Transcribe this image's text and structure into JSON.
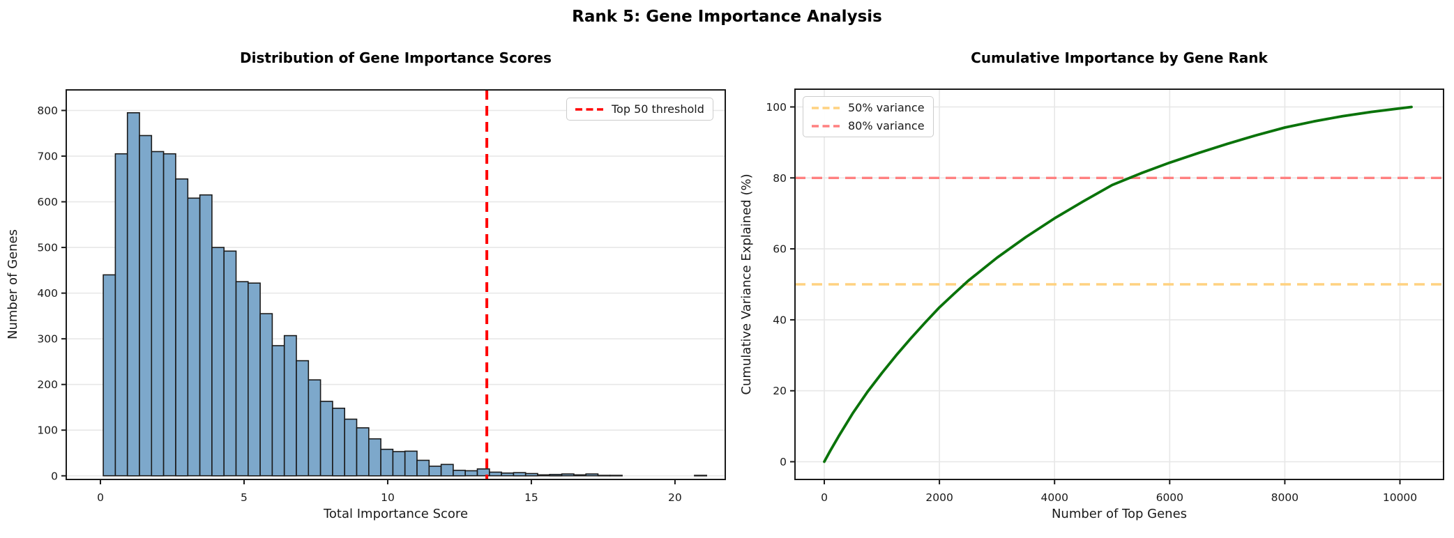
{
  "figure": {
    "suptitle": "Rank 5: Gene Importance Analysis",
    "background_color": "#ffffff"
  },
  "chart_data": [
    {
      "type": "bar",
      "subtype": "histogram",
      "title": "Distribution of Gene Importance Scores",
      "xlabel": "Total Importance Score",
      "ylabel": "Number of Genes",
      "bin_start": 0.1,
      "bin_width": 0.42,
      "counts": [
        440,
        705,
        795,
        745,
        710,
        705,
        650,
        608,
        615,
        500,
        492,
        425,
        422,
        355,
        285,
        307,
        252,
        210,
        163,
        148,
        124,
        105,
        81,
        58,
        53,
        54,
        34,
        21,
        25,
        12,
        11,
        15,
        8,
        6,
        7,
        5,
        2,
        3,
        4,
        2,
        4,
        1,
        1,
        0,
        0,
        0,
        0,
        0,
        0,
        1
      ],
      "xticks": [
        0,
        5,
        10,
        15,
        20
      ],
      "yticks": [
        0,
        100,
        200,
        300,
        400,
        500,
        600,
        700,
        800
      ],
      "xlim": [
        -1.19,
        21.75
      ],
      "ylim": [
        -8,
        845
      ],
      "grid": "y",
      "bar_color": "#7DA8CB",
      "bar_edge_color": "#1A1A1A",
      "threshold_line": {
        "x": 13.45,
        "style": "dashed",
        "color": "#FF0000",
        "label": "Top 50 threshold"
      },
      "legend": {
        "position": "upper right",
        "items": [
          {
            "label": "Top 50 threshold",
            "color": "#FF0000"
          }
        ]
      }
    },
    {
      "type": "line",
      "title": "Cumulative Importance by Gene Rank",
      "xlabel": "Number of Top Genes",
      "ylabel": "Cumulative Variance Explained (%)",
      "x": [
        0,
        100,
        250,
        500,
        750,
        1000,
        1250,
        1500,
        1750,
        2000,
        2250,
        2500,
        3000,
        3500,
        4000,
        4500,
        5000,
        5500,
        6000,
        6500,
        7000,
        7500,
        8000,
        8500,
        9000,
        9500,
        10000,
        10200
      ],
      "y": [
        0,
        3,
        7.2,
        13.8,
        19.7,
        25,
        30,
        34.7,
        39.2,
        43.5,
        47.3,
        51,
        57.5,
        63.3,
        68.6,
        73.4,
        78,
        81.3,
        84.3,
        87,
        89.6,
        92,
        94.2,
        95.9,
        97.4,
        98.6,
        99.6,
        100
      ],
      "line_color": "#0A730A",
      "xticks": [
        0,
        2000,
        4000,
        6000,
        8000,
        10000
      ],
      "yticks": [
        0,
        20,
        40,
        60,
        80,
        100
      ],
      "xlim": [
        -509,
        10757
      ],
      "ylim": [
        -5,
        105
      ],
      "grid": "both",
      "hlines": [
        {
          "y": 50,
          "style": "dashed",
          "color": "#FFD280",
          "label": "50% variance"
        },
        {
          "y": 80,
          "style": "dashed",
          "color": "#FF8080",
          "label": "80% variance"
        }
      ],
      "legend": {
        "position": "upper left",
        "items": [
          {
            "label": "50% variance",
            "color": "#FFD280"
          },
          {
            "label": "80% variance",
            "color": "#FF8080"
          }
        ]
      }
    }
  ]
}
